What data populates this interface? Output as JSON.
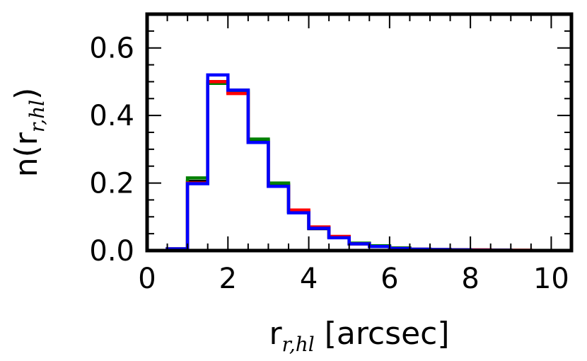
{
  "chart_data": {
    "type": "step",
    "xlabel": {
      "main": "r",
      "sub": "r,hl",
      "unit": " [arcsec]"
    },
    "ylabel": {
      "main": "n(r",
      "sub": "r,hl",
      "close": ")"
    },
    "xlim": [
      0,
      10.5
    ],
    "ylim": [
      0,
      0.7
    ],
    "xticks": [
      0,
      2,
      4,
      6,
      8,
      10
    ],
    "yticks": [
      0.0,
      0.2,
      0.4,
      0.6
    ],
    "xtick_labels": [
      "0",
      "2",
      "4",
      "6",
      "8",
      "10"
    ],
    "ytick_labels": [
      "0.0",
      "0.2",
      "0.4",
      "0.6"
    ],
    "x_minor_step": 0.5,
    "y_minor_step": 0.05,
    "bin_edges": [
      0,
      0.5,
      1.0,
      1.5,
      2.0,
      2.5,
      3.0,
      3.5,
      4.0,
      4.5,
      5.0,
      5.5,
      6.0,
      6.5,
      7.0,
      7.5,
      8.0,
      8.5,
      9.0,
      9.5,
      10.0
    ],
    "series": [
      {
        "color": "#000000",
        "values": [
          0.0,
          0.005,
          0.205,
          0.5,
          0.475,
          0.325,
          0.195,
          0.115,
          0.065,
          0.04,
          0.02,
          0.012,
          0.006,
          0.004,
          0.003,
          0.002,
          0.001,
          0.001,
          0.0,
          0.0
        ]
      },
      {
        "color": "#008000",
        "values": [
          0.0,
          0.005,
          0.215,
          0.495,
          0.47,
          0.33,
          0.2,
          0.115,
          0.068,
          0.04,
          0.022,
          0.014,
          0.008,
          0.004,
          0.003,
          0.002,
          0.001,
          0.001,
          0.0,
          0.0
        ]
      },
      {
        "color": "#ff0000",
        "values": [
          0.0,
          0.005,
          0.2,
          0.5,
          0.465,
          0.32,
          0.19,
          0.12,
          0.07,
          0.042,
          0.02,
          0.012,
          0.006,
          0.004,
          0.003,
          0.002,
          0.002,
          0.001,
          0.001,
          0.0
        ]
      },
      {
        "color": "#0000ff",
        "values": [
          0.0,
          0.005,
          0.198,
          0.52,
          0.475,
          0.32,
          0.19,
          0.112,
          0.066,
          0.038,
          0.02,
          0.012,
          0.006,
          0.004,
          0.003,
          0.002,
          0.001,
          0.001,
          0.0,
          0.0
        ]
      }
    ]
  }
}
